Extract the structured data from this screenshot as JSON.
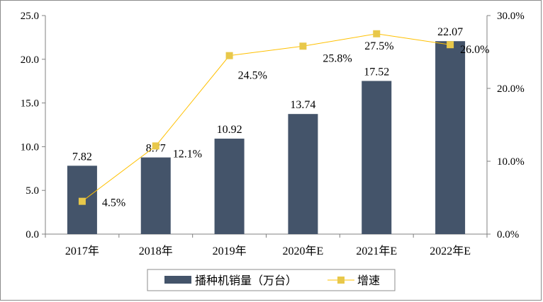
{
  "chart_data": {
    "type": "bar",
    "categories": [
      "2017年",
      "2018年",
      "2019年",
      "2020年E",
      "2021年E",
      "2022年E"
    ],
    "series": [
      {
        "name": "播种机销量（万台）",
        "type": "bar",
        "axis": "left",
        "values": [
          7.82,
          8.77,
          10.92,
          13.74,
          17.52,
          22.07
        ],
        "labels": [
          "7.82",
          "8.77",
          "10.92",
          "13.74",
          "17.52",
          "22.07"
        ],
        "color": "#44546a"
      },
      {
        "name": "增速",
        "type": "line",
        "axis": "right",
        "values": [
          4.5,
          12.1,
          24.5,
          25.8,
          27.5,
          26.0
        ],
        "labels": [
          "4.5%",
          "12.1%",
          "24.5%",
          "25.8%",
          "27.5%",
          "26.0%"
        ],
        "color": "#ffc000",
        "marker_color": "#e8c84a"
      }
    ],
    "y_left": {
      "min": 0,
      "max": 25,
      "ticks": [
        "0.0",
        "5.0",
        "10.0",
        "15.0",
        "20.0",
        "25.0"
      ]
    },
    "y_right": {
      "min": 0,
      "max": 30,
      "ticks": [
        "0.0%",
        "10.0%",
        "20.0%",
        "30.0%"
      ]
    },
    "grid": false,
    "legend_position": "bottom"
  }
}
